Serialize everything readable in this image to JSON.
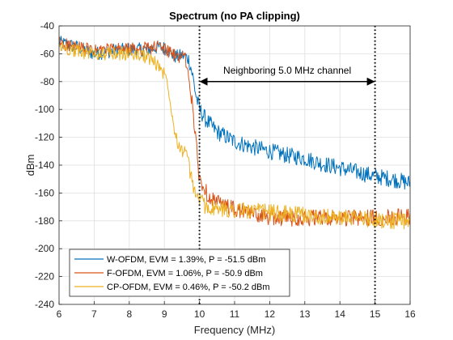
{
  "chart_data": {
    "type": "line",
    "title": "Spectrum (no PA clipping)",
    "xlabel": "Frequency (MHz)",
    "ylabel": "dBm",
    "xlim": [
      6,
      16
    ],
    "ylim": [
      -240,
      -40
    ],
    "xticks": [
      6,
      7,
      8,
      9,
      10,
      11,
      12,
      13,
      14,
      15,
      16
    ],
    "yticks": [
      -240,
      -220,
      -200,
      -180,
      -160,
      -140,
      -120,
      -100,
      -80,
      -60,
      -40
    ],
    "grid": true,
    "legend_location": "bottom-left",
    "vertical_lines": [
      10,
      15
    ],
    "annotation": {
      "text": "Neighboring 5.0 MHz channel",
      "x_range": [
        10,
        15
      ],
      "y": -80
    },
    "series": [
      {
        "name": "W-OFDM, EVM = 1.39%, P = -51.5 dBm",
        "color": "#0072BD",
        "x": [
          6.0,
          6.5,
          7.0,
          7.5,
          8.0,
          8.5,
          8.9,
          9.1,
          9.2,
          9.3,
          9.4,
          9.5,
          9.6,
          9.7,
          9.8,
          9.9,
          10.0,
          10.2,
          10.5,
          11.0,
          11.5,
          12.0,
          12.5,
          13.0,
          13.5,
          14.0,
          14.5,
          15.0,
          15.5,
          16.0
        ],
        "y": [
          -52,
          -55,
          -60,
          -58,
          -57,
          -57,
          -55,
          -57,
          -60,
          -62,
          -62,
          -61,
          -62,
          -64,
          -75,
          -90,
          -100,
          -108,
          -116,
          -123,
          -127,
          -130,
          -133,
          -135,
          -139,
          -142,
          -145,
          -148,
          -150,
          -153
        ]
      },
      {
        "name": "F-OFDM, EVM = 1.06%, P = -50.9 dBm",
        "color": "#D95319",
        "x": [
          6.0,
          6.5,
          7.0,
          7.5,
          8.0,
          8.5,
          8.9,
          9.1,
          9.2,
          9.3,
          9.4,
          9.5,
          9.6,
          9.7,
          9.8,
          9.9,
          10.0,
          10.2,
          10.5,
          11.0,
          11.5,
          12.0,
          12.5,
          13.0,
          13.5,
          14.0,
          14.5,
          15.0,
          15.5,
          16.0
        ],
        "y": [
          -52,
          -56,
          -58,
          -57,
          -57,
          -56,
          -55,
          -58,
          -60,
          -62,
          -62,
          -61,
          -63,
          -80,
          -95,
          -125,
          -150,
          -160,
          -167,
          -172,
          -175,
          -177,
          -178,
          -178,
          -178,
          -178,
          -178,
          -178,
          -177,
          -177
        ]
      },
      {
        "name": "CP-OFDM, EVM = 0.46%, P = -50.2 dBm",
        "color": "#EDB120",
        "x": [
          6.0,
          6.5,
          7.0,
          7.5,
          8.0,
          8.5,
          8.9,
          9.1,
          9.2,
          9.3,
          9.4,
          9.5,
          9.6,
          9.7,
          9.8,
          9.9,
          10.0,
          10.2,
          10.5,
          11.0,
          11.5,
          12.0,
          12.5,
          13.0,
          13.5,
          14.0,
          14.5,
          15.0,
          15.5,
          16.0
        ],
        "y": [
          -55,
          -58,
          -60,
          -60,
          -60,
          -62,
          -70,
          -80,
          -100,
          -115,
          -125,
          -130,
          -128,
          -140,
          -155,
          -160,
          -165,
          -170,
          -172,
          -172,
          -173,
          -174,
          -175,
          -176,
          -177,
          -178,
          -178,
          -179,
          -180,
          -181
        ]
      }
    ]
  }
}
